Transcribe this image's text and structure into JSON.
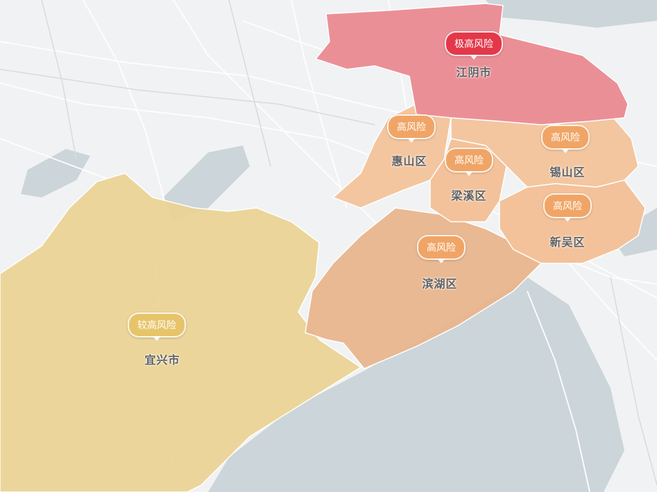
{
  "map": {
    "colors": {
      "extreme": "#e3384a",
      "high": "#f0a566",
      "mid": "#e7c46a",
      "water": "#ccd5d9",
      "land": "#f1f2f3"
    },
    "regions": [
      {
        "name": "江阴市",
        "risk": "极高风险",
        "level": "extreme"
      },
      {
        "name": "惠山区",
        "risk": "高风险",
        "level": "high"
      },
      {
        "name": "梁溪区",
        "risk": "高风险",
        "level": "high"
      },
      {
        "name": "锡山区",
        "risk": "高风险",
        "level": "high"
      },
      {
        "name": "新吴区",
        "risk": "高风险",
        "level": "high"
      },
      {
        "name": "滨湖区",
        "risk": "高风险",
        "level": "high"
      },
      {
        "name": "宜兴市",
        "risk": "较高风险",
        "level": "mid"
      }
    ]
  }
}
